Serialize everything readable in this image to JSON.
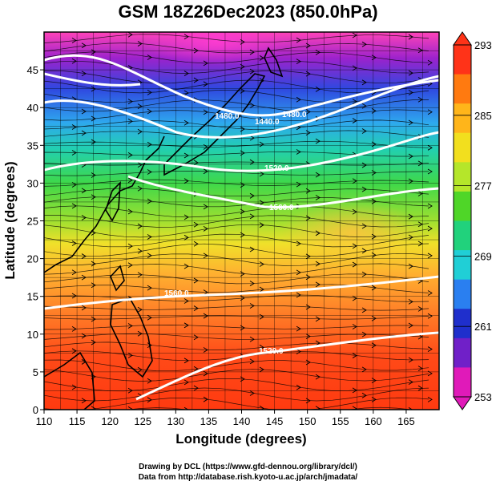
{
  "title": "GSM 18Z26Dec2023 (850.0hPa)",
  "axes": {
    "xlabel": "Longitude (degrees)",
    "ylabel": "Latitude  (degrees)",
    "xticks": [
      "110",
      "115",
      "120",
      "125",
      "130",
      "135",
      "140",
      "145",
      "150",
      "155",
      "160",
      "165"
    ],
    "yticks": [
      "0",
      "5",
      "10",
      "15",
      "20",
      "25",
      "30",
      "35",
      "40",
      "45"
    ],
    "xlim": [
      110,
      170
    ],
    "ylim": [
      0,
      50
    ]
  },
  "colorbar": {
    "labels": [
      "293",
      "285",
      "277",
      "269",
      "261",
      "253"
    ],
    "range": [
      253,
      293
    ],
    "colors": [
      "#ff3318",
      "#ff7a10",
      "#ffb51a",
      "#f2df1e",
      "#b5e62a",
      "#4fd628",
      "#21d27c",
      "#20cfd6",
      "#2a7ff0",
      "#1f2fcc",
      "#7020c8",
      "#e01ab9"
    ]
  },
  "contours": [
    {
      "label": "1440.0"
    },
    {
      "label": "1480.0"
    },
    {
      "label": "1480.0"
    },
    {
      "label": "1520.0"
    },
    {
      "label": "1560.0"
    },
    {
      "label": "1560.0"
    },
    {
      "label": "1520.0"
    }
  ],
  "credits": {
    "line1": "Drawing by DCL (https://www.gfd-dennou.org/library/dcl/)",
    "line2": "Data from http://database.rish.kyoto-u.ac.jp/arch/jmadata/"
  }
}
